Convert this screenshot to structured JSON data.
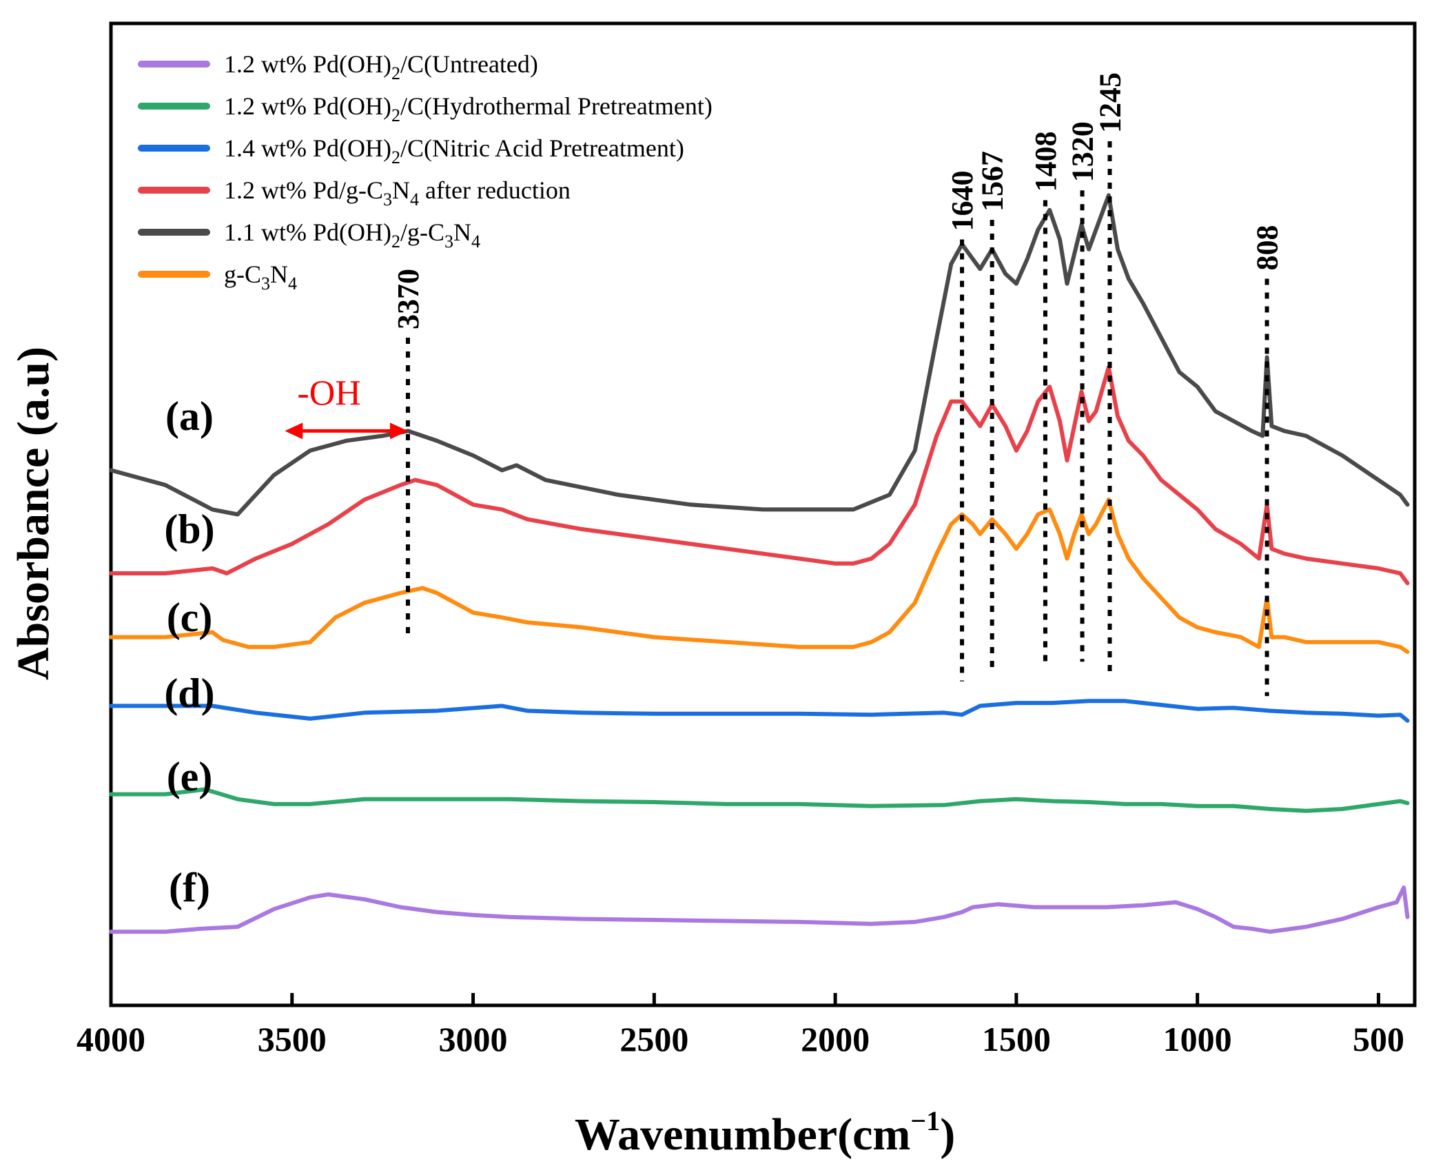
{
  "chart_data": {
    "type": "line",
    "xlabel_main": "Wavenumber(cm",
    "xlabel_sup": "−1",
    "xlabel_end": ")",
    "ylabel": "Absorbance (a.u)",
    "xlim": [
      4000,
      400
    ],
    "x_reversed": true,
    "ylim": [
      0,
      1
    ],
    "y_ticks_labeled": false,
    "grid": false,
    "legend_position": "top-left",
    "x_ticks": [
      "4000",
      "3500",
      "3000",
      "2500",
      "2000",
      "1500",
      "1000",
      "500"
    ],
    "x_tick_values": [
      4000,
      3500,
      3000,
      2500,
      2000,
      1500,
      1000,
      500
    ],
    "series": [
      {
        "id": "a",
        "curve_label": "(a)",
        "legend": {
          "prefix": "1.1 wt% Pd(OH)",
          "s1": "2",
          "mid": "/g-C",
          "s2": "3",
          "mid2": "N",
          "s3": "4",
          "suffix": ""
        },
        "color": "#4a4a4a",
        "x": [
          4000,
          3850,
          3720,
          3650,
          3550,
          3450,
          3350,
          3250,
          3180,
          3100,
          3000,
          2920,
          2880,
          2800,
          2600,
          2400,
          2200,
          2050,
          1950,
          1850,
          1780,
          1720,
          1680,
          1650,
          1620,
          1600,
          1567,
          1530,
          1500,
          1470,
          1440,
          1408,
          1380,
          1360,
          1340,
          1320,
          1300,
          1280,
          1245,
          1220,
          1190,
          1150,
          1100,
          1050,
          1000,
          950,
          900,
          850,
          820,
          808,
          795,
          760,
          700,
          600,
          500,
          440,
          420
        ],
        "y": [
          0.545,
          0.53,
          0.505,
          0.5,
          0.54,
          0.565,
          0.575,
          0.58,
          0.585,
          0.575,
          0.56,
          0.545,
          0.55,
          0.535,
          0.52,
          0.51,
          0.505,
          0.505,
          0.505,
          0.52,
          0.565,
          0.68,
          0.755,
          0.775,
          0.76,
          0.75,
          0.77,
          0.745,
          0.735,
          0.76,
          0.79,
          0.81,
          0.78,
          0.735,
          0.765,
          0.795,
          0.77,
          0.79,
          0.825,
          0.77,
          0.74,
          0.715,
          0.68,
          0.645,
          0.63,
          0.605,
          0.595,
          0.585,
          0.58,
          0.66,
          0.59,
          0.585,
          0.58,
          0.56,
          0.535,
          0.52,
          0.51
        ]
      },
      {
        "id": "b",
        "curve_label": "(b)",
        "legend": {
          "prefix": "1.2 wt% Pd/g-C",
          "s1": "3",
          "mid": "N",
          "s2": "4",
          "mid2": " after reduction",
          "s3": "",
          "suffix": ""
        },
        "color": "#e8414a",
        "x": [
          4000,
          3850,
          3720,
          3680,
          3600,
          3500,
          3400,
          3300,
          3200,
          3160,
          3100,
          3000,
          2920,
          2850,
          2700,
          2500,
          2300,
          2100,
          2000,
          1950,
          1900,
          1850,
          1780,
          1720,
          1680,
          1650,
          1620,
          1600,
          1567,
          1530,
          1500,
          1470,
          1440,
          1408,
          1380,
          1360,
          1340,
          1320,
          1300,
          1280,
          1245,
          1220,
          1190,
          1150,
          1100,
          1050,
          1000,
          950,
          880,
          830,
          808,
          795,
          760,
          700,
          600,
          500,
          440,
          420
        ],
        "y": [
          0.44,
          0.44,
          0.445,
          0.44,
          0.455,
          0.47,
          0.49,
          0.515,
          0.53,
          0.535,
          0.53,
          0.51,
          0.505,
          0.495,
          0.485,
          0.475,
          0.465,
          0.455,
          0.45,
          0.45,
          0.455,
          0.47,
          0.51,
          0.58,
          0.615,
          0.615,
          0.6,
          0.59,
          0.612,
          0.59,
          0.565,
          0.585,
          0.615,
          0.63,
          0.595,
          0.555,
          0.59,
          0.625,
          0.595,
          0.605,
          0.65,
          0.6,
          0.575,
          0.56,
          0.535,
          0.52,
          0.505,
          0.485,
          0.47,
          0.455,
          0.51,
          0.465,
          0.46,
          0.455,
          0.45,
          0.445,
          0.44,
          0.43
        ]
      },
      {
        "id": "c",
        "curve_label": "(c)",
        "legend": {
          "prefix": "g-C",
          "s1": "3",
          "mid": "N",
          "s2": "4",
          "mid2": "",
          "s3": "",
          "suffix": ""
        },
        "color": "#ff8c10",
        "x": [
          4000,
          3850,
          3720,
          3690,
          3620,
          3550,
          3450,
          3380,
          3300,
          3200,
          3140,
          3100,
          3000,
          2920,
          2850,
          2700,
          2500,
          2300,
          2100,
          2000,
          1950,
          1900,
          1850,
          1780,
          1720,
          1680,
          1650,
          1620,
          1600,
          1567,
          1530,
          1500,
          1470,
          1440,
          1408,
          1380,
          1360,
          1340,
          1320,
          1300,
          1280,
          1245,
          1220,
          1190,
          1150,
          1100,
          1050,
          1000,
          950,
          880,
          830,
          808,
          795,
          760,
          700,
          600,
          500,
          440,
          420
        ],
        "y": [
          0.375,
          0.375,
          0.38,
          0.372,
          0.365,
          0.365,
          0.37,
          0.395,
          0.41,
          0.42,
          0.425,
          0.42,
          0.4,
          0.395,
          0.39,
          0.385,
          0.375,
          0.37,
          0.365,
          0.365,
          0.365,
          0.37,
          0.38,
          0.41,
          0.46,
          0.49,
          0.5,
          0.49,
          0.48,
          0.495,
          0.48,
          0.465,
          0.48,
          0.5,
          0.505,
          0.48,
          0.455,
          0.48,
          0.5,
          0.48,
          0.49,
          0.515,
          0.48,
          0.455,
          0.435,
          0.415,
          0.395,
          0.385,
          0.38,
          0.375,
          0.365,
          0.415,
          0.375,
          0.375,
          0.37,
          0.37,
          0.37,
          0.365,
          0.36
        ]
      },
      {
        "id": "d",
        "curve_label": "(d)",
        "legend": {
          "prefix": "1.4 wt% Pd(OH)",
          "s1": "2",
          "mid": "/C(Nitric Acid Pretreatment)",
          "s2": "",
          "mid2": "",
          "s3": "",
          "suffix": ""
        },
        "color": "#1a6fe0",
        "x": [
          4000,
          3850,
          3720,
          3600,
          3450,
          3300,
          3100,
          2920,
          2850,
          2700,
          2500,
          2300,
          2100,
          1900,
          1700,
          1650,
          1600,
          1500,
          1400,
          1300,
          1200,
          1100,
          1000,
          900,
          800,
          700,
          600,
          500,
          440,
          420
        ],
        "y": [
          0.305,
          0.305,
          0.305,
          0.298,
          0.292,
          0.298,
          0.3,
          0.305,
          0.3,
          0.298,
          0.297,
          0.297,
          0.297,
          0.296,
          0.298,
          0.296,
          0.305,
          0.308,
          0.308,
          0.31,
          0.31,
          0.306,
          0.302,
          0.303,
          0.3,
          0.298,
          0.297,
          0.295,
          0.296,
          0.29
        ]
      },
      {
        "id": "e",
        "curve_label": "(e)",
        "legend": {
          "prefix": "1.2 wt% Pd(OH)",
          "s1": "2",
          "mid": "/C(Hydrothermal Pretreatment)",
          "s2": "",
          "mid2": "",
          "s3": "",
          "suffix": ""
        },
        "color": "#2ea86a",
        "x": [
          4000,
          3850,
          3740,
          3650,
          3550,
          3450,
          3300,
          3100,
          2900,
          2700,
          2500,
          2300,
          2100,
          1900,
          1700,
          1600,
          1500,
          1400,
          1300,
          1200,
          1100,
          1000,
          900,
          800,
          700,
          600,
          500,
          440,
          420
        ],
        "y": [
          0.215,
          0.215,
          0.22,
          0.21,
          0.205,
          0.205,
          0.21,
          0.21,
          0.21,
          0.208,
          0.207,
          0.205,
          0.205,
          0.203,
          0.204,
          0.208,
          0.21,
          0.208,
          0.207,
          0.205,
          0.205,
          0.203,
          0.203,
          0.2,
          0.198,
          0.2,
          0.205,
          0.208,
          0.206
        ]
      },
      {
        "id": "f",
        "curve_label": "(f)",
        "legend": {
          "prefix": "1.2 wt% Pd(OH)",
          "s1": "2",
          "mid": "/C(Untreated)",
          "s2": "",
          "mid2": "",
          "s3": "",
          "suffix": ""
        },
        "color": "#a978e0",
        "x": [
          4000,
          3850,
          3750,
          3650,
          3550,
          3450,
          3400,
          3300,
          3200,
          3100,
          3000,
          2900,
          2700,
          2500,
          2300,
          2100,
          1900,
          1780,
          1700,
          1650,
          1620,
          1550,
          1450,
          1350,
          1250,
          1150,
          1060,
          1000,
          950,
          900,
          850,
          800,
          700,
          600,
          500,
          450,
          430,
          420
        ],
        "y": [
          0.075,
          0.075,
          0.078,
          0.08,
          0.098,
          0.11,
          0.113,
          0.108,
          0.1,
          0.095,
          0.092,
          0.09,
          0.088,
          0.087,
          0.086,
          0.085,
          0.083,
          0.085,
          0.09,
          0.095,
          0.1,
          0.103,
          0.1,
          0.1,
          0.1,
          0.102,
          0.105,
          0.098,
          0.09,
          0.08,
          0.078,
          0.075,
          0.08,
          0.088,
          0.1,
          0.105,
          0.12,
          0.09
        ]
      }
    ],
    "legend_order": [
      "f",
      "e",
      "d",
      "b",
      "a",
      "c"
    ],
    "peak_markers": [
      {
        "label": "1640",
        "x": 1650,
        "y_top": 0.78,
        "y_bottom": 0.33
      },
      {
        "label": "1567",
        "x": 1567,
        "y_top": 0.8,
        "y_bottom": 0.34
      },
      {
        "label": "1408",
        "x": 1420,
        "y_top": 0.82,
        "y_bottom": 0.35
      },
      {
        "label": "1320",
        "x": 1318,
        "y_top": 0.83,
        "y_bottom": 0.35
      },
      {
        "label": "1245",
        "x": 1242,
        "y_top": 0.88,
        "y_bottom": 0.34
      },
      {
        "label": "808",
        "x": 808,
        "y_top": 0.74,
        "y_bottom": 0.315
      },
      {
        "label": "3370",
        "x": 3180,
        "y_top": 0.68,
        "y_bottom": 0.375
      }
    ],
    "annotation": {
      "label": "-OH",
      "color": "#ff0000",
      "x_start": 3520,
      "x_end": 3180,
      "y": 0.585
    }
  }
}
